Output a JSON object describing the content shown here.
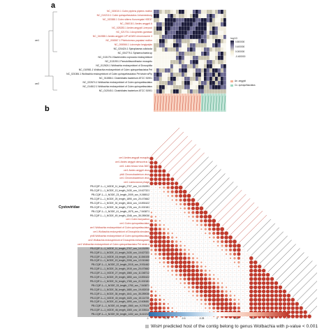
{
  "panel_a": {
    "label": "a",
    "rows": [
      {
        "text": "NC_015010.1 Culex pipiens pipiens molitor",
        "color": "red"
      },
      {
        "text": "NC_010210.1 Culex quinquefasciatus Johannesburg",
        "color": "red"
      },
      {
        "text": "NC_020388.1 Culex sitiens Kurunegala HSE37",
        "color": "red"
      },
      {
        "text": "NC_036018.1 Aedes aegypti A",
        "color": "red"
      },
      {
        "text": "NC_028283.1 Aedes aegypti Liverpool",
        "color": "red"
      },
      {
        "text": "NC_021701.1 Anopheles gambiae",
        "color": "red"
      },
      {
        "text": "NC_041988.1 Aedes aegypti LVP AGWG chromosome 3",
        "color": "red"
      },
      {
        "text": "NC_006567.1 Phlebotomus papatasi molitor",
        "color": "red"
      },
      {
        "text": "NC_006566.1 Lutzomyia longipalpis",
        "color": "red"
      },
      {
        "text": "NC_024424.1 Spiroplasma culicicola",
        "color": "blk"
      },
      {
        "text": "NC_004775.1 Sphaerochaeta sp",
        "color": "blk"
      },
      {
        "text": "NC_013175.1 Bacteroides coprocola endosymbiont",
        "color": "blk"
      },
      {
        "text": "NC_013190.1 Pseudoflavonifractor mosquito",
        "color": "blk"
      },
      {
        "text": "NC_012624.1 Wolbachia endosymbiont of Drosophila",
        "color": "blk"
      },
      {
        "text": "NC_010981.1 Wolbachia endosymbiont of Culex quinquefasciatus Pel",
        "color": "blk"
      },
      {
        "text": "NC_021084.1 Wolbachia endosymbiont of Culex quinquefasciatus Pel strain wPip",
        "color": "blk"
      },
      {
        "text": "NC_011586.1 Clostridiales bacterium ATCC 51901",
        "color": "blk"
      },
      {
        "text": "NC_022674.1 Wolbachia endosymbiont of Culex quinquefasciatus",
        "color": "blk"
      },
      {
        "text": "NC_014612.1 Wolbachia endosymbiont of Culex quinquefasciatus",
        "color": "blk"
      },
      {
        "text": "NC_012045.1 Clostridiales bacterium ATCC 51901",
        "color": "blk"
      }
    ],
    "group_labels": [
      "cer1",
      "cer2"
    ],
    "legend_title": "log10",
    "legend_ticks": [
      "0.800000",
      "0.400000",
      "0.000000",
      "-0.400000"
    ],
    "legend_items": [
      {
        "label": "Ae. aegypti",
        "color": "#f4b49a"
      },
      {
        "label": "Cx. quinquefasciatus",
        "color": "#9fd6c0"
      }
    ]
  },
  "panel_b": {
    "label": "b",
    "row_group_label": "Cystoviridae",
    "rows": [
      {
        "text": "cer1 Aedes aegypti mosquito",
        "color": "red",
        "hl": false
      },
      {
        "text": "cer1 Aedes aegypti densovirus 1",
        "color": "red",
        "hl": false
      },
      {
        "text": "cer1 Luteo beauv virus 3607",
        "color": "red",
        "hl": false
      },
      {
        "text": "cer1 Aedes aegypti virus",
        "color": "red",
        "hl": false
      },
      {
        "text": "phi6 Chromobacterium virus",
        "color": "red",
        "hl": false
      },
      {
        "text": "cer1 Chromobacterium virus",
        "color": "red",
        "hl": false
      },
      {
        "text": "cer1 Lactococcus phage",
        "color": "red",
        "hl": false
      },
      {
        "text": "PB-CQIF-1—1_NODE_11_length_2707_cov_14.151991",
        "color": "blk",
        "hl": false
      },
      {
        "text": "PB-CQIF-1—1_NODE_13_length_2430_cov_10.627321",
        "color": "blk",
        "hl": false
      },
      {
        "text": "PB-CQIF-1—1_NODE_23_length_2009_cov_9.265512",
        "color": "blk",
        "hl": false
      },
      {
        "text": "PB-CQIF-1—1_NODE_25_length_1890_cov_20.470662",
        "color": "blk",
        "hl": false
      },
      {
        "text": "PB-CQIF-1—1_NODE_30_length_1844_cov_10.892422",
        "color": "blk",
        "hl": false
      },
      {
        "text": "PB-CQIF-1—1_NODE_34_length_1726_cov_21.002181",
        "color": "blk",
        "hl": false
      },
      {
        "text": "PB-CQIF-1—1_NODE_41_length_1575_cov_7.543871",
        "color": "blk",
        "hl": false
      },
      {
        "text": "PB-CQIF-1—1_NODE_49_length_1346_cov_35.289036",
        "color": "blk",
        "hl": false
      },
      {
        "text": "cer1 Culex bunyavirus",
        "color": "red",
        "hl": false
      },
      {
        "text": "cer1 Culex quinquefasciatus",
        "color": "red",
        "hl": false
      },
      {
        "text": "cer1 Wolbachia endosymbiont of Culex quinquefasciatus",
        "color": "red",
        "hl": false
      },
      {
        "text": "cer1 Wolbachia endosymbiont of Drosophila simulans",
        "color": "red",
        "hl": false
      },
      {
        "text": "phi6 Wolbachia endosymbiont of Culex quinquefasciatus",
        "color": "red",
        "hl": false
      },
      {
        "text": "cer2 Wolbachia endosymbiont of Drosophila melanogaster",
        "color": "red",
        "hl": false
      },
      {
        "text": "cer1 Wolbachia endosymbiont of Culex quinquefasciatus Pel strain wPip",
        "color": "red",
        "hl": false
      },
      {
        "text": "PB-CQIF-1—1_NODE_11_length_2707_cov_14.151991",
        "color": "blk",
        "hl": true
      },
      {
        "text": "PB-CQIF-1—1_NODE_13_length_2430_cov_10.627321",
        "color": "blk",
        "hl": true
      },
      {
        "text": "PB-CQIF-1—1_NODE_18_length_2218_cov_11.846108",
        "color": "blk",
        "hl": true
      },
      {
        "text": "PB-CQIF-1—1_NODE_19_length_2206_cov_12.010462",
        "color": "blk",
        "hl": true
      },
      {
        "text": "PB-CQIF-1—1_NODE_22_length_2015_cov_9.931462",
        "color": "blk",
        "hl": true
      },
      {
        "text": "PB-CQIF-1—1_NODE_24_length_1919_cov_20.470662",
        "color": "blk",
        "hl": true
      },
      {
        "text": "PB-CQIF-1—1_NODE_27_length_1860_cov_11.048712",
        "color": "blk",
        "hl": true
      },
      {
        "text": "PB-CQIF-1—1_NODE_29_length_1850_cov_10.892422",
        "color": "blk",
        "hl": true
      },
      {
        "text": "PB-CQIF-1—1_NODE_31_length_1765_cov_21.002181",
        "color": "blk",
        "hl": true
      },
      {
        "text": "PB-CQIF-1—1_NODE_33_length_1750_cov_7.543871",
        "color": "blk",
        "hl": true
      },
      {
        "text": "PB-CQIF-1—1_NODE_36_length_1680_cov_19.452018",
        "color": "blk",
        "hl": true
      },
      {
        "text": "PB-CQIF-1—1_NODE_38_length_1641_cov_35.289036",
        "color": "blk",
        "hl": true
      },
      {
        "text": "PB-CQIF-1—1_NODE_40_length_1620_cov_15.114730",
        "color": "blk",
        "hl": true
      },
      {
        "text": "PB-CQIF-1—1_NODE_42_length_1590_cov_12.608451",
        "color": "blk",
        "hl": true
      },
      {
        "text": "PB-CQIF-1—1_NODE_44_length_1560_cov_9.278125",
        "color": "blk",
        "hl": true
      },
      {
        "text": "PB-CQIF-1—1_NODE_46_length_1500_cov_10.335114",
        "color": "blk",
        "hl": true
      },
      {
        "text": "PB-CQIF-1—1_NODE_50_length_1432_cov_8.410215",
        "color": "blk",
        "hl": true
      }
    ],
    "colorbar_ticks": [
      "-1",
      "-0.75",
      "-0.5",
      "-0.25",
      "0",
      "0.25",
      "0.5",
      "0.75",
      "1"
    ],
    "footnote": "WisH predicted host of the contig belong to genus Wolbachia with p-value < 0.001"
  },
  "colors": {
    "accent_red": "#c0392b",
    "accent_blue": "#2f6fad",
    "heat_dark": "#1c1c3a",
    "hilite_gray": "#bdbdbd"
  }
}
